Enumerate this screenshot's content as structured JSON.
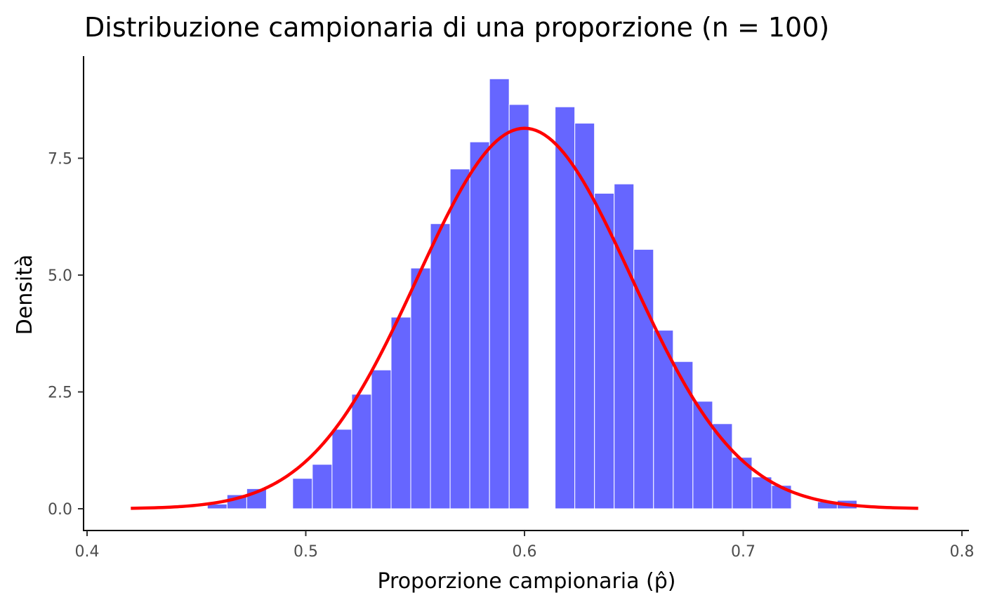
{
  "chart_data": {
    "type": "bar",
    "title": "Distribuzione campionaria di una proporzione (n = 100)",
    "xlabel": "Proporzione campionaria (p̂)",
    "ylabel": "Densità",
    "xlim": [
      0.4,
      0.8
    ],
    "ylim": [
      0,
      9.2
    ],
    "x_ticks": [
      0.4,
      0.5,
      0.6,
      0.7,
      0.8
    ],
    "x_tick_labels": [
      "0.4",
      "0.5",
      "0.6",
      "0.7",
      "0.8"
    ],
    "y_ticks": [
      0,
      2.5,
      5.0,
      7.5
    ],
    "y_tick_labels": [
      "0.0",
      "2.5",
      "5.0",
      "7.5"
    ],
    "grid": false,
    "legend": "none",
    "bin_width": 0.009,
    "series": [
      {
        "type": "histogram",
        "color": "#6666ff",
        "edge_color": "#ffffff",
        "bins": [
          {
            "x": 0.455,
            "y": 0.1
          },
          {
            "x": 0.464,
            "y": 0.3
          },
          {
            "x": 0.473,
            "y": 0.43
          },
          {
            "x": 0.494,
            "y": 0.65
          },
          {
            "x": 0.503,
            "y": 0.95
          },
          {
            "x": 0.512,
            "y": 1.7
          },
          {
            "x": 0.521,
            "y": 2.45
          },
          {
            "x": 0.53,
            "y": 2.97
          },
          {
            "x": 0.539,
            "y": 4.1
          },
          {
            "x": 0.548,
            "y": 5.15
          },
          {
            "x": 0.557,
            "y": 6.1
          },
          {
            "x": 0.566,
            "y": 7.27
          },
          {
            "x": 0.575,
            "y": 7.85
          },
          {
            "x": 0.584,
            "y": 9.2
          },
          {
            "x": 0.593,
            "y": 8.65
          },
          {
            "x": 0.614,
            "y": 8.6
          },
          {
            "x": 0.623,
            "y": 8.25
          },
          {
            "x": 0.632,
            "y": 6.75
          },
          {
            "x": 0.641,
            "y": 6.95
          },
          {
            "x": 0.65,
            "y": 5.55
          },
          {
            "x": 0.659,
            "y": 3.82
          },
          {
            "x": 0.668,
            "y": 3.15
          },
          {
            "x": 0.677,
            "y": 2.3
          },
          {
            "x": 0.686,
            "y": 1.82
          },
          {
            "x": 0.695,
            "y": 1.1
          },
          {
            "x": 0.704,
            "y": 0.68
          },
          {
            "x": 0.713,
            "y": 0.5
          },
          {
            "x": 0.734,
            "y": 0.15
          },
          {
            "x": 0.743,
            "y": 0.18
          }
        ]
      },
      {
        "type": "line",
        "color": "#ff0000",
        "distribution": "normal",
        "mean": 0.6,
        "sd": 0.049,
        "x_range": [
          0.42,
          0.78
        ]
      }
    ]
  }
}
